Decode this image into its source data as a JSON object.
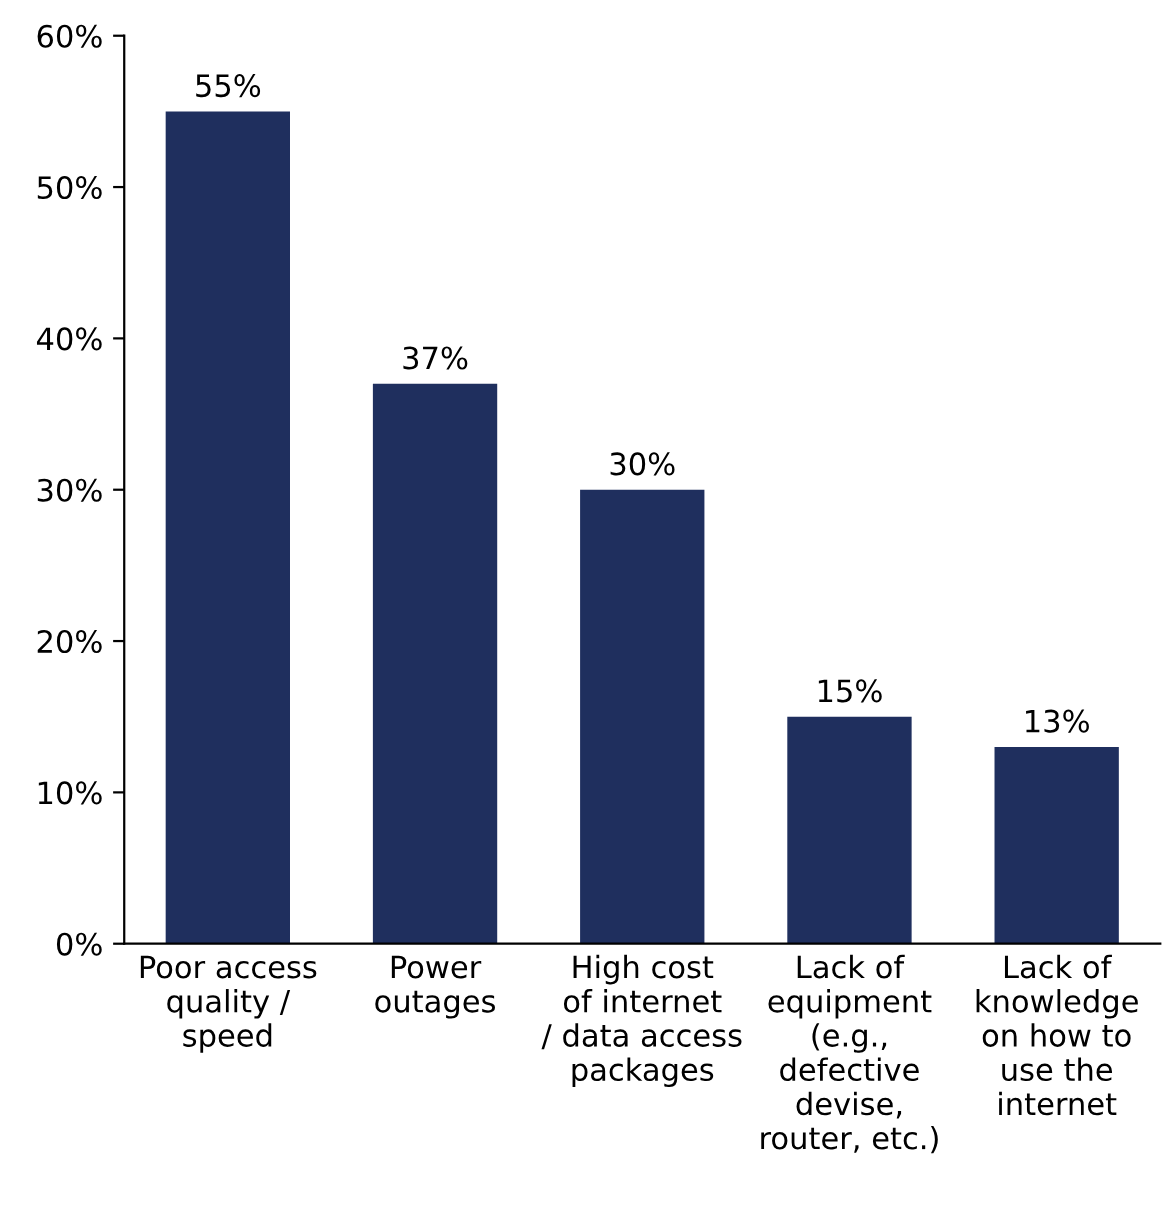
{
  "chart_data": {
    "type": "bar",
    "categories": [
      "Poor access\nquality /\nspeed",
      "Power\noutages",
      "High cost\nof internet\n/ data access\npackages",
      "Lack of\nequipment\n(e.g.,\ndefective\ndevise,\nrouter, etc.)",
      "Lack of\nknowledge\non how to\nuse the\ninternet"
    ],
    "values": [
      55,
      37,
      30,
      15,
      13
    ],
    "value_labels": [
      "55%",
      "37%",
      "30%",
      "15%",
      "13%"
    ],
    "color": "#1f2f5e",
    "ylim": [
      0,
      60
    ],
    "yticks": [
      {
        "value": 0,
        "label": "0%"
      },
      {
        "value": 10,
        "label": "10%"
      },
      {
        "value": 20,
        "label": "20%"
      },
      {
        "value": 30,
        "label": "30%"
      },
      {
        "value": 40,
        "label": "40%"
      },
      {
        "value": 50,
        "label": "50%"
      },
      {
        "value": 60,
        "label": "60%"
      }
    ],
    "grid": false,
    "legend": false
  }
}
